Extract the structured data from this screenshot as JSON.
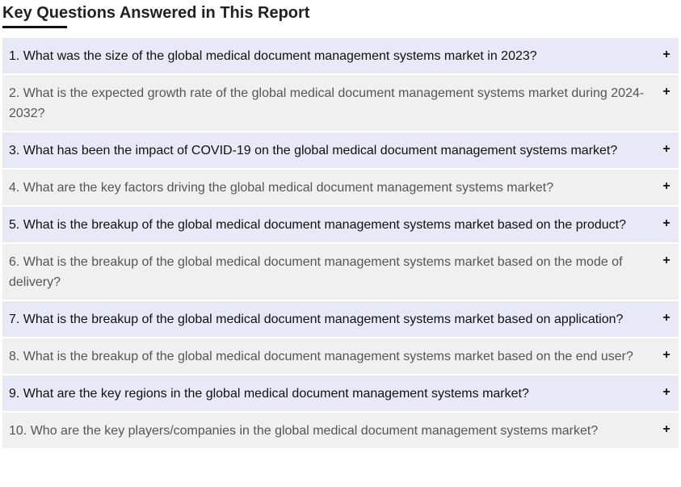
{
  "section": {
    "title": "Key Questions Answered in This Report"
  },
  "faq": {
    "toggle_symbol": "+",
    "items": [
      {
        "question": "1. What was the size of the global medical document management systems market in 2023?"
      },
      {
        "question": "2. What is the expected growth rate of the global medical document management systems market during 2024-2032?"
      },
      {
        "question": "3. What has been the impact of COVID-19 on the global medical document management systems market?"
      },
      {
        "question": "4. What are the key factors driving the global medical document management systems market?"
      },
      {
        "question": "5. What is the breakup of the global medical document management systems market based on the product?"
      },
      {
        "question": "6. What is the breakup of the global medical document management systems market based on the mode of delivery?"
      },
      {
        "question": "7. What is the breakup of the global medical document management systems market based on application?"
      },
      {
        "question": "8. What is the breakup of the global medical document management systems market based on the end user?"
      },
      {
        "question": "9. What are the key regions in the global medical document management systems market?"
      },
      {
        "question": "10. Who are the key players/companies in the global medical document management systems market?"
      }
    ]
  },
  "colors": {
    "odd_row_bg": "#e8e9f6",
    "even_row_bg": "#f0f0f0",
    "title_text": "#222222"
  }
}
